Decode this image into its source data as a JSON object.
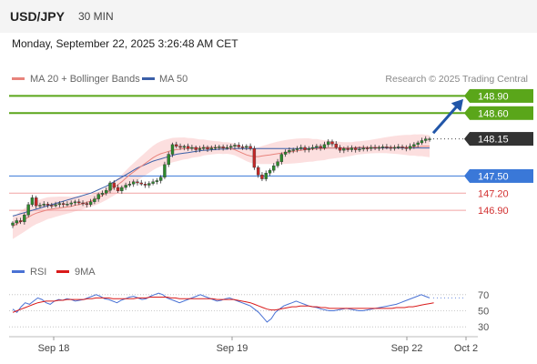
{
  "header": {
    "symbol": "USD/JPY",
    "timeframe": "30 MIN"
  },
  "timestamp": "Monday, September 22, 2025 3:26:48 AM CET",
  "legend": {
    "item1": "MA 20 + Bollinger Bands",
    "item2": "MA 50",
    "credit": "Research © 2025 Trading Central",
    "rsi": "RSI",
    "ma9": "9MA"
  },
  "colors": {
    "ma20": "#e8837c",
    "ma50": "#3a5fa8",
    "bands": "#fbd9d9",
    "support": "#3a78d8",
    "resistance": "#5aa61a",
    "pivot_lines": "#f2a3a3",
    "candle_up": "#2d8a2d",
    "candle_down": "#c62828",
    "price_box": "#333333",
    "rsi": "#4a72d4",
    "rsi_ma": "#d91a1a",
    "arrow": "#2156a8"
  },
  "chart_data": [
    {
      "type": "candlestick",
      "y_range": [
        146.25,
        149.05
      ],
      "x_ticks": [
        "Sep 18",
        "Sep 19",
        "Sep 22",
        "Oct 2"
      ],
      "levels": [
        {
          "value": 148.9,
          "label": "148.90",
          "kind": "resistance"
        },
        {
          "value": 148.6,
          "label": "148.60",
          "kind": "resistance"
        },
        {
          "value": 148.15,
          "label": "148.15",
          "kind": "current"
        },
        {
          "value": 147.5,
          "label": "147.50",
          "kind": "support"
        },
        {
          "value": 147.2,
          "label": "147.20",
          "kind": "pivot"
        },
        {
          "value": 146.9,
          "label": "146.90",
          "kind": "pivot"
        }
      ],
      "close_series": [
        146.68,
        146.72,
        146.7,
        146.82,
        147.0,
        147.12,
        146.98,
        146.99,
        147.01,
        146.99,
        146.98,
        147.0,
        147.02,
        147.0,
        147.01,
        147.03,
        147.05,
        147.03,
        147.02,
        147.0,
        147.05,
        147.1,
        147.18,
        147.2,
        147.25,
        147.38,
        147.3,
        147.24,
        147.3,
        147.34,
        147.36,
        147.4,
        147.38,
        147.36,
        147.34,
        147.37,
        147.4,
        147.42,
        147.48,
        147.7,
        147.88,
        148.05,
        148.02,
        148.0,
        148.02,
        147.98,
        148.0,
        147.96,
        147.98,
        148.0,
        147.97,
        147.99,
        148.0,
        148.01,
        147.99,
        148.0,
        148.02,
        148.04,
        148.01,
        148.0,
        148.02,
        147.98,
        147.65,
        147.52,
        147.45,
        147.55,
        147.6,
        147.68,
        147.75,
        147.88,
        147.92,
        147.95,
        147.96,
        147.98,
        148.0,
        147.96,
        147.98,
        148.0,
        148.02,
        147.99,
        148.05,
        148.1,
        148.06,
        148.0,
        147.95,
        147.98,
        147.96,
        147.99,
        147.96,
        147.97,
        147.99,
        147.98,
        148.0,
        147.99,
        148.0,
        148.01,
        148.0,
        147.99,
        148.0,
        148.01,
        148.0,
        147.98,
        148.02,
        148.05,
        148.08,
        148.12,
        148.15,
        148.15
      ],
      "ma20": [
        146.62,
        146.66,
        146.7,
        146.74,
        146.78,
        146.82,
        146.85,
        146.87,
        146.89,
        146.91,
        146.92,
        146.93,
        146.94,
        146.95,
        146.96,
        146.97,
        146.99,
        147.0,
        147.02,
        147.04,
        147.06,
        147.09,
        147.12,
        147.16,
        147.2,
        147.25,
        147.3,
        147.35,
        147.4,
        147.46,
        147.52,
        147.57,
        147.62,
        147.67,
        147.72,
        147.77,
        147.82,
        147.86,
        147.89,
        147.91,
        147.93,
        147.95,
        147.96,
        147.97,
        147.98,
        147.98,
        147.99,
        147.99,
        147.99,
        148.0,
        148.0,
        148.0,
        148.0,
        148.0,
        147.99,
        147.99,
        147.98,
        147.96,
        147.93,
        147.9,
        147.87,
        147.85,
        147.84,
        147.84,
        147.85,
        147.86,
        147.87,
        147.88,
        147.89,
        147.9,
        147.91,
        147.92,
        147.93,
        147.94,
        147.95,
        147.96,
        147.97,
        147.97,
        147.98,
        147.98,
        147.98,
        147.99,
        147.99,
        147.99,
        147.99,
        147.99,
        147.99,
        147.99,
        148.0,
        148.0,
        148.0,
        148.0,
        148.0,
        148.0,
        148.0,
        148.0,
        148.0,
        148.0,
        148.0,
        148.0,
        148.0,
        148.0,
        148.0,
        148.01,
        148.01,
        148.02,
        148.02,
        148.02
      ],
      "ma50": [
        146.8,
        146.82,
        146.84,
        146.86,
        146.88,
        146.9,
        146.92,
        146.94,
        146.96,
        146.98,
        147.0,
        147.02,
        147.04,
        147.06,
        147.08,
        147.1,
        147.12,
        147.14,
        147.16,
        147.18,
        147.2,
        147.23,
        147.26,
        147.29,
        147.32,
        147.36,
        147.4,
        147.44,
        147.48,
        147.52,
        147.56,
        147.6,
        147.64,
        147.67,
        147.7,
        147.73,
        147.76,
        147.78,
        147.8,
        147.82,
        147.84,
        147.86,
        147.88,
        147.89,
        147.9,
        147.91,
        147.92,
        147.93,
        147.94,
        147.95,
        147.95,
        147.96,
        147.96,
        147.97,
        147.97,
        147.97,
        147.98,
        147.98,
        147.98,
        147.98,
        147.98,
        147.98,
        147.98,
        147.98,
        147.98,
        147.98,
        147.98,
        147.98,
        147.98,
        147.98,
        147.98,
        147.98,
        147.98,
        147.98,
        147.98,
        147.98,
        147.98,
        147.99,
        147.99,
        147.99,
        147.99,
        147.99,
        147.99,
        147.99,
        147.99,
        147.99,
        147.99,
        147.99,
        147.99,
        147.99,
        147.99,
        147.99,
        147.99,
        147.99,
        147.99,
        147.99,
        147.99,
        147.99,
        147.99,
        147.99,
        147.99,
        147.99,
        147.99,
        147.99,
        147.99,
        147.99,
        147.99,
        147.99
      ],
      "forecast_arrow": {
        "from": 148.25,
        "to": 148.9
      }
    },
    {
      "type": "line",
      "y_ticks": [
        70,
        50,
        30
      ],
      "y_range": [
        20,
        80
      ],
      "series": [
        {
          "name": "RSI",
          "values": [
            52,
            48,
            55,
            60,
            58,
            62,
            66,
            64,
            60,
            58,
            62,
            64,
            63,
            65,
            64,
            62,
            63,
            64,
            66,
            68,
            70,
            68,
            65,
            64,
            62,
            60,
            63,
            65,
            67,
            68,
            66,
            64,
            65,
            68,
            70,
            72,
            70,
            66,
            64,
            62,
            60,
            62,
            64,
            66,
            68,
            70,
            68,
            66,
            64,
            62,
            63,
            65,
            66,
            64,
            62,
            60,
            58,
            56,
            52,
            48,
            42,
            36,
            40,
            48,
            52,
            56,
            58,
            60,
            62,
            60,
            58,
            56,
            55,
            54,
            52,
            51,
            50,
            50,
            51,
            52,
            53,
            52,
            51,
            50,
            50,
            51,
            52,
            53,
            54,
            55,
            56,
            57,
            58,
            60,
            62,
            64,
            66,
            68,
            70,
            68,
            66
          ]
        },
        {
          "name": "9MA",
          "values": [
            48,
            50,
            52,
            54,
            56,
            58,
            60,
            61,
            62,
            62,
            62,
            63,
            63,
            64,
            64,
            64,
            64,
            64,
            65,
            65,
            66,
            66,
            66,
            66,
            65,
            65,
            65,
            65,
            65,
            65,
            66,
            66,
            66,
            67,
            67,
            67,
            67,
            67,
            66,
            66,
            65,
            65,
            65,
            65,
            65,
            65,
            65,
            65,
            65,
            64,
            64,
            64,
            64,
            64,
            63,
            62,
            61,
            60,
            58,
            56,
            54,
            52,
            51,
            51,
            52,
            53,
            54,
            55,
            55,
            56,
            56,
            56,
            55,
            55,
            54,
            54,
            53,
            53,
            53,
            53,
            53,
            53,
            53,
            53,
            53,
            53,
            53,
            53,
            53,
            53,
            53,
            53,
            54,
            54,
            54,
            55,
            55,
            56,
            57,
            58,
            59,
            60
          ]
        }
      ]
    }
  ]
}
